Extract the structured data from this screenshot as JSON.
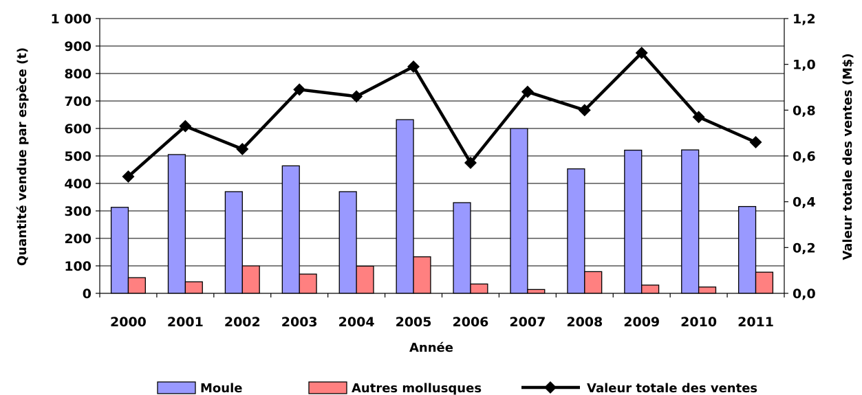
{
  "chart_data": {
    "type": "bar",
    "title": "",
    "xlabel": "Année",
    "ylabel_left": "Quantité vendue par espèce (t)",
    "ylabel_right": "Valeur totale des ventes (M$)",
    "categories": [
      "2000",
      "2001",
      "2002",
      "2003",
      "2004",
      "2005",
      "2006",
      "2007",
      "2008",
      "2009",
      "2010",
      "2011"
    ],
    "ylim_left": [
      0,
      1000
    ],
    "ylim_right": [
      0,
      1.2
    ],
    "left_ticks": [
      "0",
      "100",
      "200",
      "300",
      "400",
      "500",
      "600",
      "700",
      "800",
      "900",
      "1 000"
    ],
    "right_ticks": [
      "0,0",
      "0,2",
      "0,4",
      "0,6",
      "0,8",
      "1,0",
      "1,2"
    ],
    "grid": true,
    "legend_position": "bottom",
    "series": [
      {
        "name": "Moule",
        "kind": "bar",
        "axis": "left",
        "color": "#9999ff",
        "values": [
          313,
          505,
          370,
          464,
          370,
          632,
          330,
          600,
          453,
          521,
          522,
          316
        ]
      },
      {
        "name": "Autres mollusques",
        "kind": "bar",
        "axis": "left",
        "color": "#ff8080",
        "values": [
          57,
          42,
          100,
          70,
          99,
          133,
          34,
          14,
          79,
          30,
          23,
          77
        ]
      },
      {
        "name": "Valeur totale des ventes",
        "kind": "line",
        "axis": "right",
        "color": "#000000",
        "marker": "diamond",
        "values": [
          0.51,
          0.73,
          0.63,
          0.89,
          0.86,
          0.99,
          0.57,
          0.88,
          0.8,
          1.05,
          0.77,
          0.66
        ]
      }
    ]
  }
}
